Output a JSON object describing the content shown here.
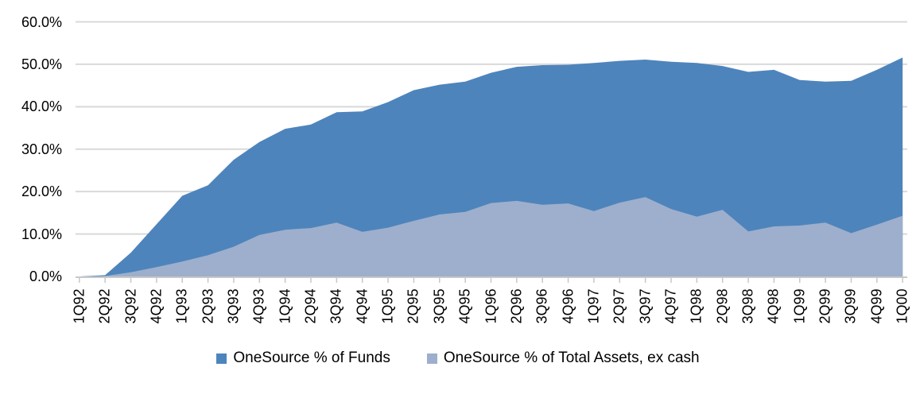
{
  "chart_data": {
    "type": "area",
    "overlap": true,
    "title": "",
    "xlabel": "",
    "ylabel": "",
    "grid": true,
    "legend_position": "bottom",
    "categories": [
      "1Q92",
      "2Q92",
      "3Q92",
      "4Q92",
      "1Q93",
      "2Q93",
      "3Q93",
      "4Q93",
      "1Q94",
      "2Q94",
      "3Q94",
      "4Q94",
      "1Q95",
      "2Q95",
      "3Q95",
      "4Q95",
      "1Q96",
      "2Q96",
      "3Q96",
      "4Q96",
      "1Q97",
      "2Q97",
      "3Q97",
      "4Q97",
      "1Q98",
      "2Q98",
      "3Q98",
      "4Q98",
      "1Q99",
      "2Q99",
      "3Q99",
      "4Q99",
      "1Q00"
    ],
    "series": [
      {
        "name": "OneSource % of Funds",
        "color": "#4E84BC",
        "values": [
          0.0,
          0.3,
          5.6,
          12.3,
          19.0,
          21.5,
          27.5,
          31.7,
          34.8,
          35.8,
          38.7,
          38.9,
          41.1,
          43.9,
          45.2,
          45.9,
          48.0,
          49.4,
          49.8,
          49.9,
          50.3,
          50.8,
          51.1,
          50.6,
          50.3,
          49.6,
          48.2,
          48.7,
          46.3,
          45.9,
          46.1,
          48.7,
          51.6
        ]
      },
      {
        "name": "OneSource % of Total Assets, ex cash",
        "color": "#9DAFCC",
        "values": [
          0.0,
          0.1,
          1.0,
          2.2,
          3.5,
          5.0,
          7.0,
          9.8,
          11.0,
          11.4,
          12.7,
          10.5,
          11.5,
          13.1,
          14.6,
          15.2,
          17.3,
          17.8,
          16.9,
          17.2,
          15.4,
          17.4,
          18.7,
          15.9,
          14.1,
          15.7,
          10.6,
          11.8,
          12.0,
          12.7,
          10.2,
          12.2,
          14.3
        ]
      }
    ],
    "y_axis": {
      "min": 0,
      "max": 60,
      "step": 10,
      "tick_labels": [
        "0.0%",
        "10.0%",
        "20.0%",
        "30.0%",
        "40.0%",
        "50.0%",
        "60.0%"
      ]
    },
    "colors": {
      "gridline": "#D9D9D9",
      "axis": "#C8C8C8",
      "text": "#000000"
    }
  },
  "legend": {
    "items": [
      {
        "label": "OneSource % of Funds",
        "color": "#4E84BC"
      },
      {
        "label": "OneSource % of Total Assets, ex cash",
        "color": "#9DAFCC"
      }
    ]
  }
}
